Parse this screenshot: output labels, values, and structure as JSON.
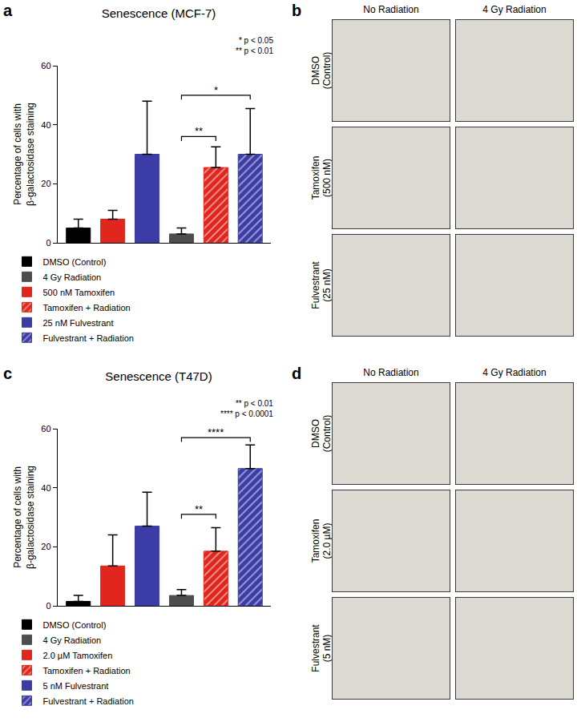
{
  "chart_data": [
    {
      "panel": "a",
      "type": "bar",
      "title": "Senescence (MCF-7)",
      "y_label": [
        "Percentage of cells with",
        "β-galactosidase staining"
      ],
      "categories": [
        null,
        null,
        null,
        null,
        null,
        null
      ],
      "ylim": [
        0,
        60
      ],
      "yticks": [
        0,
        20,
        40,
        60
      ],
      "tick_labels": "y",
      "legend": "bottom",
      "series": [
        {
          "name": "DMSO (Control)",
          "color": "#000000",
          "marker": "solid",
          "values": [
            5,
            null,
            null,
            null,
            null,
            null
          ],
          "errors": [
            3,
            null,
            null,
            null,
            null,
            null
          ]
        },
        {
          "name": "500 nM Tamoxifen",
          "color": "#e0261d",
          "marker": "solid",
          "values": [
            null,
            8,
            null,
            null,
            null,
            null
          ],
          "errors": [
            null,
            3,
            null,
            null,
            null,
            null
          ]
        },
        {
          "name": "25 nM Fulvestrant",
          "color": "#3c3ca6",
          "marker": "solid",
          "values": [
            null,
            null,
            30,
            null,
            null,
            null
          ],
          "errors": [
            null,
            null,
            18,
            null,
            null,
            null
          ]
        },
        {
          "name": "4 Gy Radiation",
          "color": "#4d4d4d",
          "marker": "solid",
          "values": [
            null,
            null,
            null,
            3,
            null,
            null
          ],
          "errors": [
            null,
            null,
            null,
            2,
            null,
            null
          ]
        },
        {
          "name": "Tamoxifen + Radiation",
          "color": "#e0261d",
          "marker": "hatched",
          "values": [
            null,
            null,
            null,
            null,
            25.5,
            null
          ],
          "errors": [
            null,
            null,
            null,
            null,
            7,
            null
          ]
        },
        {
          "name": "Fulvestrant + Radiation",
          "color": "#3c3ca6",
          "marker": "hatched",
          "values": [
            null,
            null,
            null,
            null,
            null,
            30
          ],
          "errors": [
            null,
            null,
            null,
            null,
            null,
            15.5
          ]
        }
      ],
      "significance": [
        {
          "from": 3,
          "to": 4,
          "y": 36,
          "label": "**"
        },
        {
          "from": 3,
          "to": 5,
          "y": 50,
          "label": "*"
        }
      ],
      "annotations": [
        "* p < 0.05",
        "** p < 0.01"
      ]
    },
    {
      "panel": "c",
      "type": "bar",
      "title": "Senescence (T47D)",
      "y_label": [
        "Percentage of cells with",
        "β-galactosidase staining"
      ],
      "categories": [
        null,
        null,
        null,
        null,
        null,
        null
      ],
      "ylim": [
        0,
        60
      ],
      "yticks": [
        0,
        20,
        40,
        60
      ],
      "tick_labels": "y",
      "legend": "bottom",
      "series": [
        {
          "name": "DMSO (Control)",
          "color": "#000000",
          "marker": "solid",
          "values": [
            1.5,
            null,
            null,
            null,
            null,
            null
          ],
          "errors": [
            2,
            null,
            null,
            null,
            null,
            null
          ]
        },
        {
          "name": "2.0 µM Tamoxifen",
          "color": "#e0261d",
          "marker": "solid",
          "values": [
            null,
            13.5,
            null,
            null,
            null,
            null
          ],
          "errors": [
            null,
            10.5,
            null,
            null,
            null,
            null
          ]
        },
        {
          "name": "5 nM Fulvestrant",
          "color": "#3c3ca6",
          "marker": "solid",
          "values": [
            null,
            null,
            27,
            null,
            null,
            null
          ],
          "errors": [
            null,
            null,
            11.5,
            null,
            null,
            null
          ]
        },
        {
          "name": "4 Gy Radiation",
          "color": "#4d4d4d",
          "marker": "solid",
          "values": [
            null,
            null,
            null,
            3.5,
            null,
            null
          ],
          "errors": [
            null,
            null,
            null,
            2,
            null,
            null
          ]
        },
        {
          "name": "Tamoxifen + Radiation",
          "color": "#e0261d",
          "marker": "hatched",
          "values": [
            null,
            null,
            null,
            null,
            18.5,
            null
          ],
          "errors": [
            null,
            null,
            null,
            null,
            8,
            null
          ]
        },
        {
          "name": "Fulvestrant + Radiation",
          "color": "#3c3ca6",
          "marker": "hatched",
          "values": [
            null,
            null,
            null,
            null,
            null,
            46.5
          ],
          "errors": [
            null,
            null,
            null,
            null,
            null,
            8
          ]
        }
      ],
      "significance": [
        {
          "from": 3,
          "to": 4,
          "y": 31,
          "label": "**"
        },
        {
          "from": 3,
          "to": 5,
          "y": 57,
          "label": "****"
        }
      ],
      "annotations": [
        "** p < 0.01",
        "**** p < 0.0001"
      ]
    }
  ],
  "image_panels": [
    {
      "panel": "b",
      "columns": [
        "No Radiation",
        "4 Gy Radiation"
      ],
      "rows": [
        [
          "DMSO",
          "(Control)"
        ],
        [
          "Tamoxifen",
          "(500 nM)"
        ],
        [
          "Fulvestrant",
          "(25 nM)"
        ]
      ]
    },
    {
      "panel": "d",
      "columns": [
        "No Radiation",
        "4 Gy Radiation"
      ],
      "rows": [
        [
          "DMSO",
          "(Control)"
        ],
        [
          "Tamoxifen",
          "(2.0 µM)"
        ],
        [
          "Fulvestrant",
          "(5 nM)"
        ]
      ]
    }
  ]
}
